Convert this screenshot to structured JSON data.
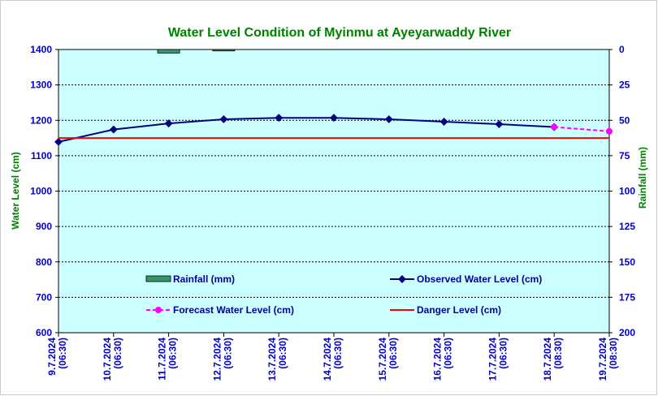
{
  "chart_data": {
    "type": "line",
    "title": "Water Level Condition of Myinmu at Ayeyarwaddy River",
    "ylabel": "Water Level (cm)",
    "y2label": "Rainfall (mm)",
    "ylim": [
      600,
      1400
    ],
    "y2lim": [
      0,
      200
    ],
    "y2_inverted": true,
    "yticks": [
      "600",
      "700",
      "800",
      "900",
      "1000",
      "1100",
      "1200",
      "1300",
      "1400"
    ],
    "y2ticks": [
      "0",
      "25",
      "50",
      "75",
      "100",
      "125",
      "150",
      "175",
      "200"
    ],
    "categories": [
      "9.7.2024 (06:30)",
      "10.7.2024 (06:30)",
      "11.7.2024 (06:30)",
      "12.7.2024 (06:30)",
      "13.7.2024 (06:30)",
      "14.7.2024 (06:30)",
      "15.7.2024 (06:30)",
      "16.7.2024 (06:30)",
      "17.7.2024 (06:30)",
      "18.7.2024 (08:30)",
      "19.7.2024 (08:30)"
    ],
    "series": [
      {
        "name": "Observed Water Level (cm)",
        "color": "#000080",
        "axis": "left",
        "values": [
          1139,
          1174,
          1191,
          1203,
          1207,
          1207,
          1203,
          1196,
          1189,
          1181,
          null
        ]
      },
      {
        "name": "Forecast Water Level (cm)",
        "color": "#ff00ff",
        "axis": "left",
        "dashed": true,
        "values": [
          null,
          null,
          null,
          null,
          null,
          null,
          null,
          null,
          null,
          1181,
          1169
        ]
      },
      {
        "name": "Danger Level (cm)",
        "color": "#ff0000",
        "axis": "left",
        "constant": 1150
      },
      {
        "name": "Rainfall (mm)",
        "color": "#339966",
        "axis": "right",
        "type": "bar",
        "values": [
          0,
          0,
          2.5,
          1,
          0,
          0,
          0,
          0,
          0,
          0,
          0
        ]
      }
    ],
    "legend_order": [
      "Rainfall (mm)",
      "Observed Water Level (cm)",
      "Forecast Water Level (cm)",
      "Danger Level (cm)"
    ],
    "grid": true,
    "plot_background": "#ccffff",
    "title_color": "#008000",
    "tick_color": "#0000cc"
  }
}
